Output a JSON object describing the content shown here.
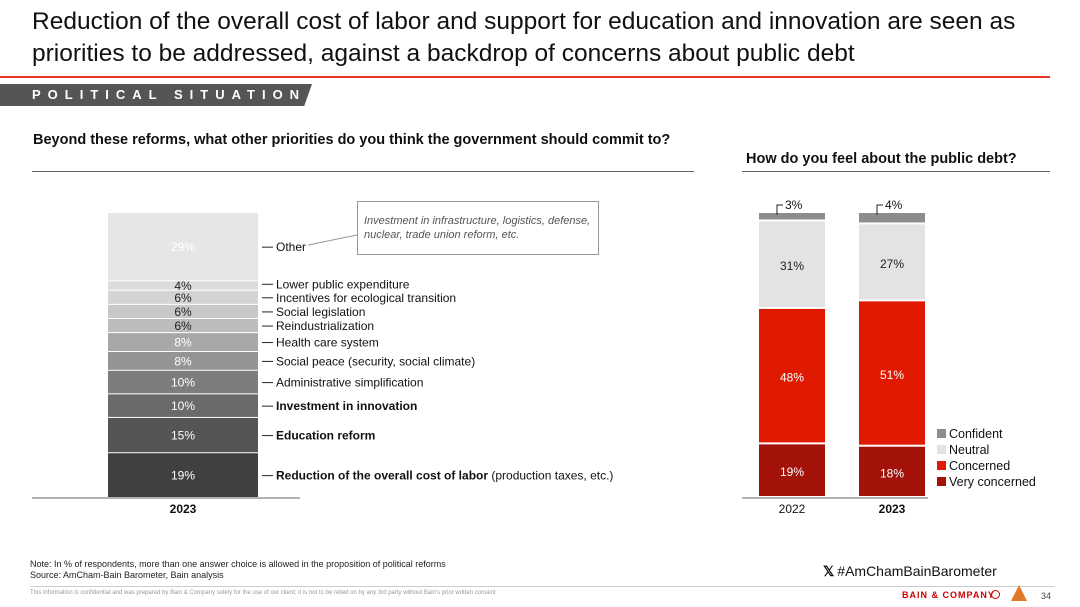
{
  "title": "Reduction of the overall cost of labor and support for education and innovation are seen as priorities to be addressed, against a backdrop of concerns about public debt",
  "section_label": "POLITICAL SITUATION",
  "left_question": "Beyond these reforms, what other priorities do you think the government should commit to?",
  "right_question": "How do you feel about the public debt?",
  "callout_text": "Investment in infrastructure, logistics, defense, nuclear, trade union reform, etc.",
  "note_line1": "Note: In % of respondents, more than one answer choice is allowed in the proposition of political reforms",
  "note_line2": "Source: AmCham-Bain Barometer, Bain analysis",
  "hashtag": "#AmChamBainBarometer",
  "x_icon": "x-logo-icon",
  "disclaimer": "This information is confidential and was prepared by Bain & Company solely for the use of our client; it is not to be relied on by any 3rd party without Bain's prior written consent",
  "brand": "BAIN & COMPANY",
  "page_number": "34",
  "colors": {
    "accent_red": "#e6332a",
    "concerned": "#e01a00",
    "very_concerned": "#a31208",
    "neutral": "#e3e3e3",
    "confident": "#8c8c8c"
  },
  "chart_data": [
    {
      "type": "bar",
      "stacked": true,
      "categories": [
        "2023"
      ],
      "series": [
        {
          "name": "Reduction of the overall cost of labor",
          "name_suffix": " (production taxes, etc.)",
          "bold": true,
          "values": [
            19
          ],
          "color": "#404040"
        },
        {
          "name": "Education reform",
          "bold": true,
          "values": [
            15
          ],
          "color": "#555555"
        },
        {
          "name": "Investment in innovation",
          "bold": true,
          "values": [
            10
          ],
          "color": "#6a6a6a"
        },
        {
          "name": "Administrative simplification",
          "bold": false,
          "values": [
            10
          ],
          "color": "#7d7d7d"
        },
        {
          "name": "Social peace (security, social climate)",
          "bold": false,
          "values": [
            8
          ],
          "color": "#949494"
        },
        {
          "name": "Health care system",
          "bold": false,
          "values": [
            8
          ],
          "color": "#a8a8a8"
        },
        {
          "name": "Reindustrialization",
          "bold": false,
          "values": [
            6
          ],
          "color": "#bcbcbc"
        },
        {
          "name": "Social legislation",
          "bold": false,
          "values": [
            6
          ],
          "color": "#c8c8c8"
        },
        {
          "name": "Incentives for ecological transition",
          "bold": false,
          "values": [
            6
          ],
          "color": "#d4d4d4"
        },
        {
          "name": "Lower public expenditure",
          "bold": false,
          "values": [
            4
          ],
          "color": "#dcdcdc"
        },
        {
          "name": "Other",
          "bold": false,
          "values": [
            29
          ],
          "color": "#e6e6e6"
        }
      ]
    },
    {
      "type": "bar",
      "stacked": true,
      "categories": [
        "2022",
        "2023"
      ],
      "bold_categories": [
        false,
        true
      ],
      "series": [
        {
          "name": "Very concerned",
          "values": [
            19,
            18
          ],
          "color": "#a31208"
        },
        {
          "name": "Concerned",
          "values": [
            48,
            51
          ],
          "color": "#e01a00"
        },
        {
          "name": "Neutral",
          "values": [
            31,
            27
          ],
          "color": "#e3e3e3"
        },
        {
          "name": "Confident",
          "values": [
            3,
            4
          ],
          "color": "#8c8c8c"
        }
      ],
      "legend": [
        "Confident",
        "Neutral",
        "Concerned",
        "Very concerned"
      ],
      "legend_position": "right"
    }
  ]
}
